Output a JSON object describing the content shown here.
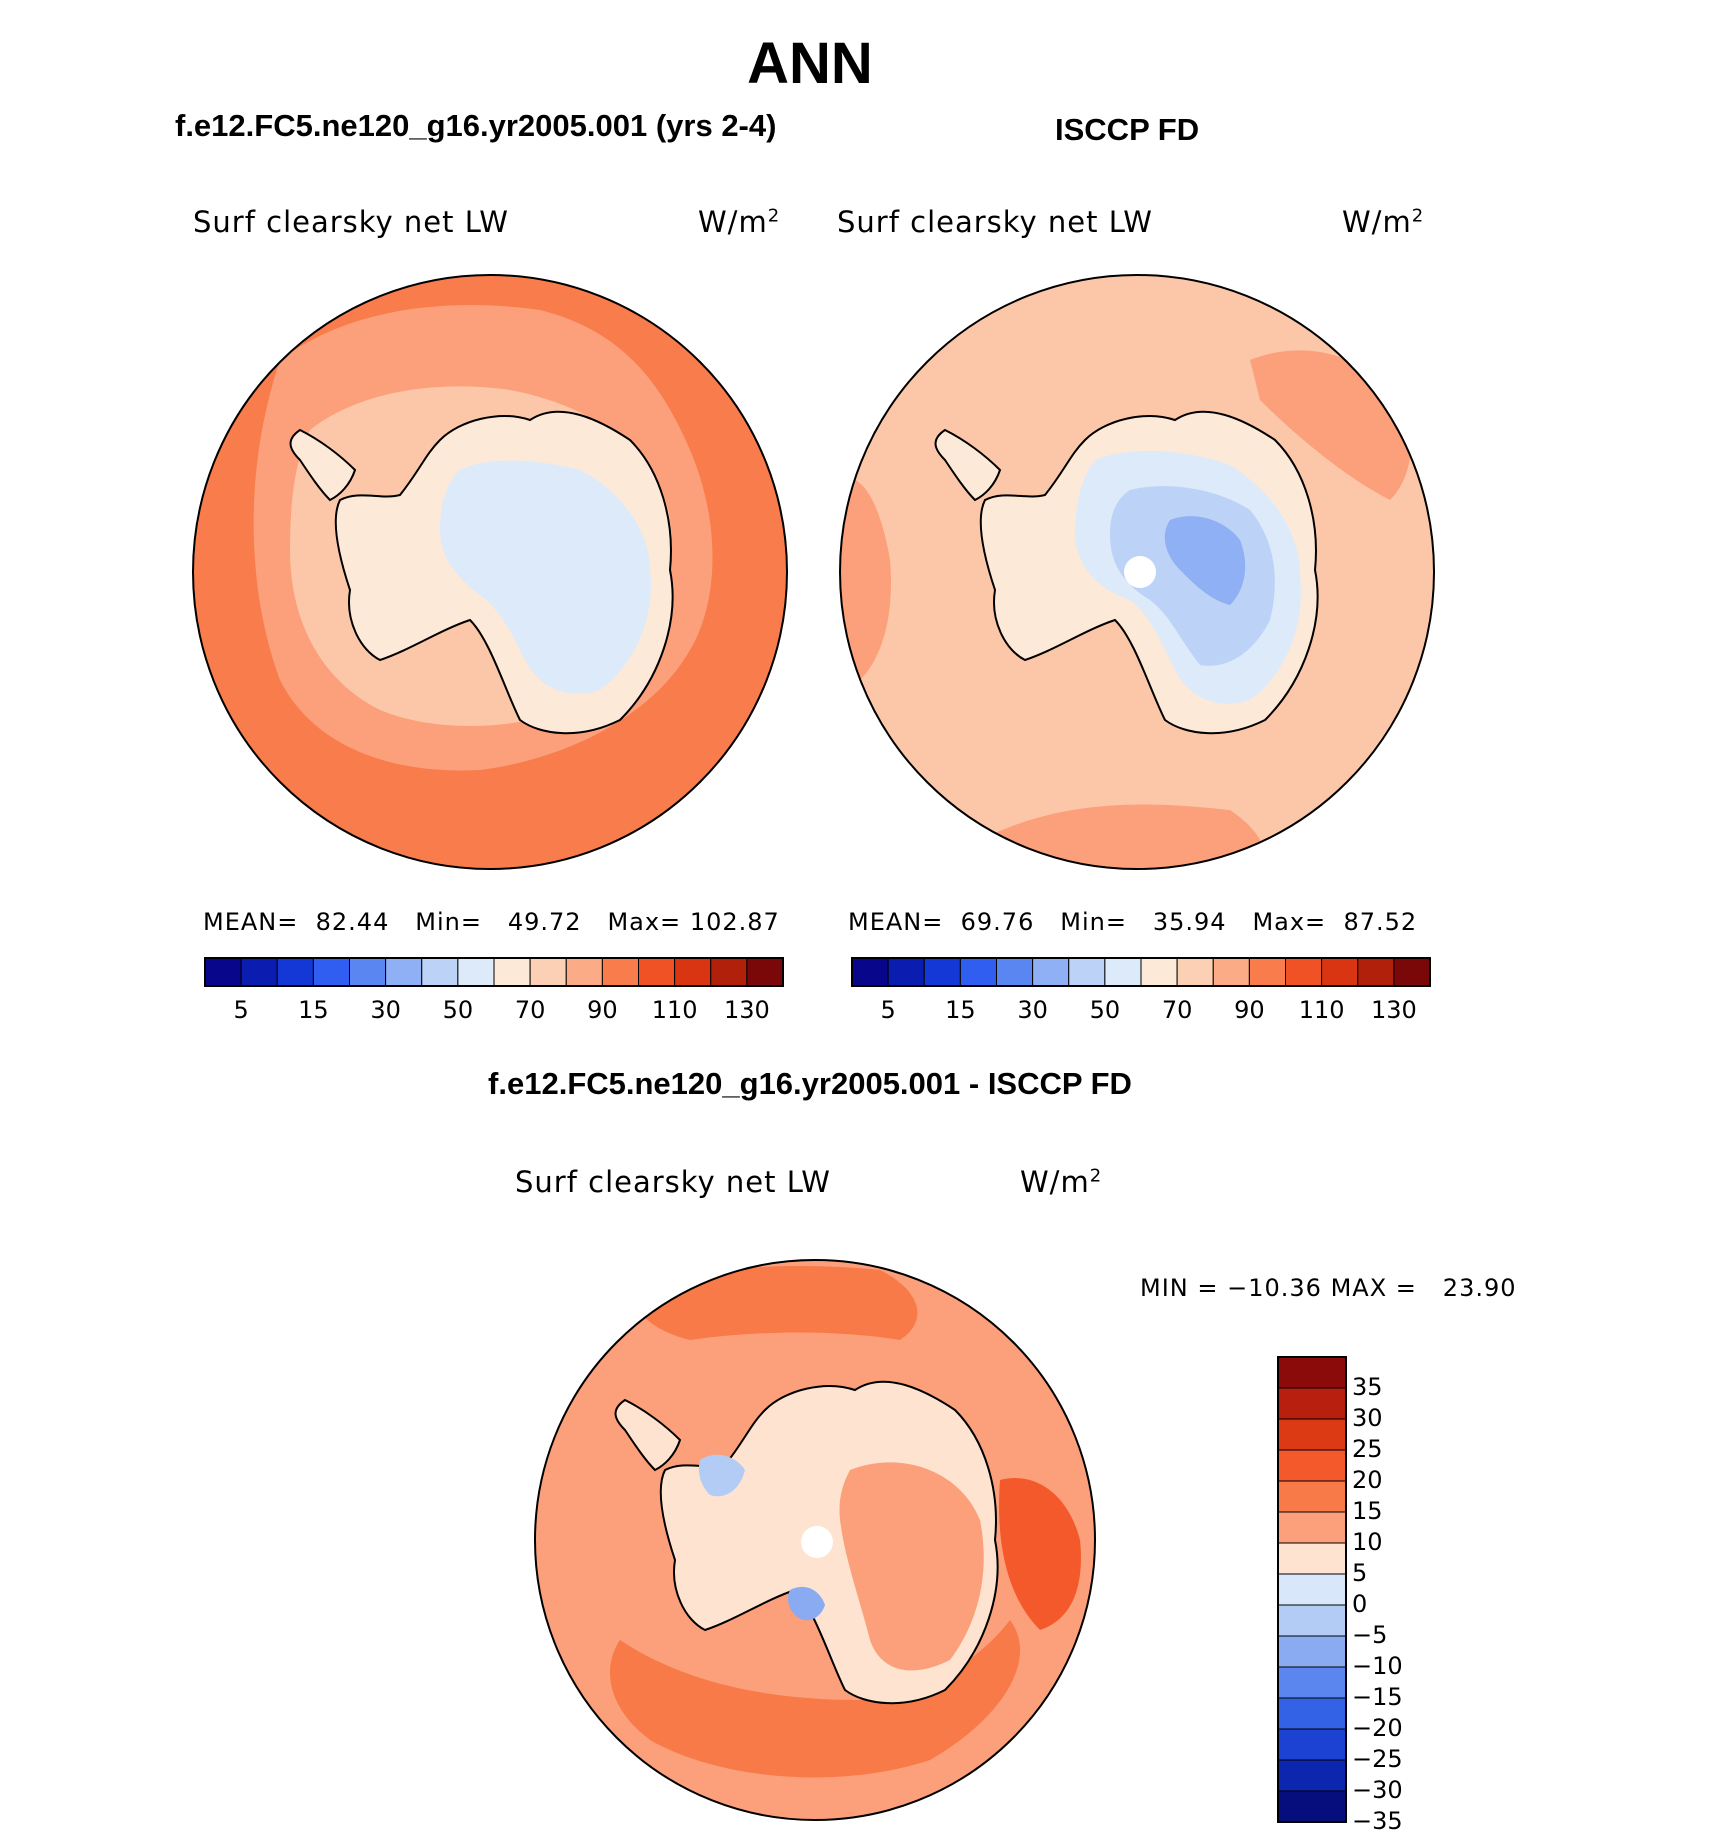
{
  "figure": {
    "title": "ANN",
    "panel_left_title": "f.e12.FC5.ne120_g16.yr2005.001 (yrs 2-4)",
    "panel_right_title": "ISCCP FD",
    "diff_title": "f.e12.FC5.ne120_g16.yr2005.001 - ISCCP FD"
  },
  "panels": [
    {
      "label": "Surf clearsky net LW",
      "units_base": "W/m",
      "units_sup": "2",
      "stats": {
        "mean_label": "MEAN=",
        "mean": "82.44",
        "min_label": "Min=",
        "min": "49.72",
        "max_label": "Max=",
        "max": "102.87"
      }
    },
    {
      "label": "Surf clearsky net LW",
      "units_base": "W/m",
      "units_sup": "2",
      "stats": {
        "mean_label": "MEAN=",
        "mean": "69.76",
        "min_label": "Min=",
        "min": "35.94",
        "max_label": "Max=",
        "max": "87.52"
      }
    },
    {
      "label": "Surf clearsky net LW",
      "units_base": "W/m",
      "units_sup": "2",
      "stats": {
        "min_label": "MIN =",
        "min": "−10.36",
        "max_label": "MAX =",
        "max": "23.90"
      }
    }
  ],
  "colorbars": {
    "abs_ticks": [
      "5",
      "15",
      "30",
      "50",
      "70",
      "90",
      "110",
      "130"
    ],
    "abs_colors": [
      "#08068a",
      "#0a1db0",
      "#1338d6",
      "#2f5ef0",
      "#5a86f2",
      "#8fb0f4",
      "#bcd2f6",
      "#ddeafa",
      "#fde9d8",
      "#fcd0b4",
      "#fbab86",
      "#f87c4c",
      "#f05226",
      "#d93512",
      "#b0200a",
      "#7a0808"
    ],
    "diff_ticks": [
      "35",
      "30",
      "25",
      "20",
      "15",
      "10",
      "5",
      "0",
      "−5",
      "−10",
      "−15",
      "−20",
      "−25",
      "−30",
      "−35"
    ],
    "diff_colors": [
      "#8b0a0a",
      "#b81f0f",
      "#db3a15",
      "#f4592b",
      "#f87a48",
      "#fba07a",
      "#fde3d0",
      "#d8e8fa",
      "#b3ccf5",
      "#8aaaf2",
      "#5c86ef",
      "#3462e6",
      "#1c42d4",
      "#0d26b0",
      "#050e7c"
    ]
  },
  "map_colors": {
    "ocean_deep": "#f87c4c",
    "ocean_mid": "#fba07a",
    "ocean_light": "#fcc7a8",
    "land_warm": "#fde9d8",
    "land_cool": "#ddeafa",
    "land_blue": "#bcd2f6",
    "land_blue2": "#8fb0f4",
    "diff_land": "#fde3d0",
    "diff_red": "#f4592b"
  }
}
